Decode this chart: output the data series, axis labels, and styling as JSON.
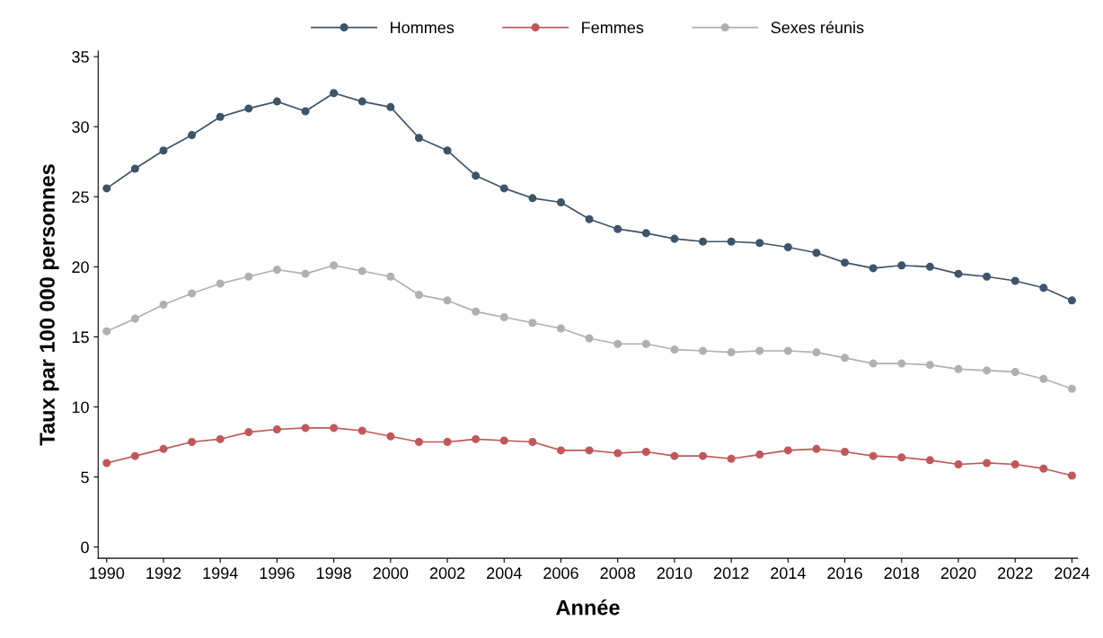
{
  "chart_data": {
    "type": "line",
    "xlabel": "Année",
    "ylabel": "Taux par 100 000 personnes",
    "x": [
      1990,
      1991,
      1992,
      1993,
      1994,
      1995,
      1996,
      1997,
      1998,
      1999,
      2000,
      2001,
      2002,
      2003,
      2004,
      2005,
      2006,
      2007,
      2008,
      2009,
      2010,
      2011,
      2012,
      2013,
      2014,
      2015,
      2016,
      2017,
      2018,
      2019,
      2020,
      2021,
      2022,
      2023,
      2024
    ],
    "series": [
      {
        "name": "Hommes",
        "color": "#3e5468",
        "values": [
          25.6,
          27.0,
          28.3,
          29.4,
          30.7,
          31.3,
          31.8,
          31.1,
          32.4,
          31.8,
          31.4,
          29.2,
          28.3,
          26.5,
          25.6,
          24.9,
          24.6,
          23.4,
          22.7,
          22.4,
          22.0,
          21.8,
          21.8,
          21.7,
          21.4,
          21.0,
          20.3,
          19.9,
          20.1,
          20.0,
          19.5,
          19.3,
          19.0,
          18.5,
          17.6
        ]
      },
      {
        "name": "Femmes",
        "color": "#c0585a",
        "values": [
          6.0,
          6.5,
          7.0,
          7.5,
          7.7,
          8.2,
          8.4,
          8.5,
          8.5,
          8.3,
          7.9,
          7.5,
          7.5,
          7.7,
          7.6,
          7.5,
          6.9,
          6.9,
          6.7,
          6.8,
          6.5,
          6.5,
          6.3,
          6.6,
          6.9,
          7.0,
          6.8,
          6.5,
          6.4,
          6.2,
          5.9,
          6.0,
          5.9,
          5.6,
          5.1
        ]
      },
      {
        "name": "Sexes réunis",
        "color": "#b0b0b0",
        "values": [
          15.4,
          16.3,
          17.3,
          18.1,
          18.8,
          19.3,
          19.8,
          19.5,
          20.1,
          19.7,
          19.3,
          18.0,
          17.6,
          16.8,
          16.4,
          16.0,
          15.6,
          14.9,
          14.5,
          14.5,
          14.1,
          14.0,
          13.9,
          14.0,
          14.0,
          13.9,
          13.5,
          13.1,
          13.1,
          13.0,
          12.7,
          12.6,
          12.5,
          12.0,
          11.3
        ]
      }
    ],
    "xlim": [
      1989.7,
      2024.2
    ],
    "xticks": [
      1990,
      1992,
      1994,
      1996,
      1998,
      2000,
      2002,
      2004,
      2006,
      2008,
      2010,
      2012,
      2014,
      2016,
      2018,
      2020,
      2022,
      2024
    ],
    "ylim": [
      -0.8,
      35.4
    ],
    "yticks": [
      0,
      5,
      10,
      15,
      20,
      25,
      30,
      35
    ],
    "marker": "circle",
    "line_style": "solid",
    "legend": "top",
    "grid": false
  }
}
